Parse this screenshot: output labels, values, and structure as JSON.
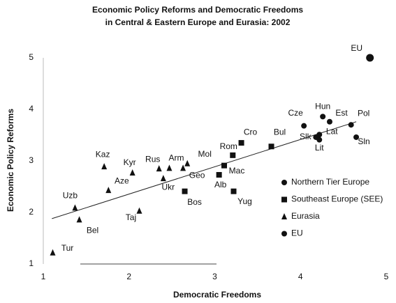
{
  "chart_data": {
    "type": "scatter",
    "title": "Economic Policy Reforms and Democratic Freedoms",
    "subtitle": "in Central & Eastern Europe and Eurasia: 2002",
    "xlabel": "Democratic Freedoms",
    "ylabel": "Economic Policy Reforms",
    "xlim": [
      1,
      5
    ],
    "ylim": [
      1,
      5
    ],
    "xticks": [
      1,
      2,
      3,
      4,
      5
    ],
    "yticks": [
      1,
      2,
      3,
      4,
      5
    ],
    "series": [
      {
        "name": "Northern Tier Europe",
        "color": "#111111",
        "marker": "circle",
        "labels": [
          "Cze",
          "Hun",
          "Est",
          "Pol",
          "Lat",
          "Slk",
          "Lit",
          "Sln"
        ],
        "x": [
          4.04,
          4.26,
          4.34,
          4.59,
          4.22,
          4.18,
          4.22,
          4.65
        ],
        "y": [
          3.68,
          3.86,
          3.76,
          3.7,
          3.51,
          3.46,
          3.41,
          3.46
        ]
      },
      {
        "name": "Southeast Europe (SEE)",
        "color": "#111111",
        "marker": "square",
        "labels": [
          "Cro",
          "Bul",
          "Rom",
          "Mac",
          "Alb",
          "Yug",
          "Bos"
        ],
        "x": [
          3.31,
          3.66,
          3.21,
          3.11,
          3.05,
          3.22,
          2.65
        ],
        "y": [
          3.35,
          3.28,
          3.11,
          2.91,
          2.73,
          2.41,
          2.41
        ]
      },
      {
        "name": "Eurasia",
        "color": "#111111",
        "marker": "triangle",
        "labels": [
          "Kaz",
          "Kyr",
          "Rus",
          "Arm",
          "Geo",
          "Mol",
          "Aze",
          "Ukr",
          "Uzb",
          "Bel",
          "Taj",
          "Tur"
        ],
        "x": [
          1.71,
          2.04,
          2.35,
          2.47,
          2.63,
          2.68,
          1.76,
          2.4,
          1.37,
          1.42,
          2.12,
          1.11
        ],
        "y": [
          2.89,
          2.77,
          2.85,
          2.86,
          2.86,
          2.95,
          2.43,
          2.66,
          2.09,
          1.86,
          2.03,
          1.22
        ]
      },
      {
        "name": "EU",
        "color": "#111111",
        "marker": "circle",
        "labels": [
          "EU"
        ],
        "x": [
          4.81
        ],
        "y": [
          5.0
        ]
      }
    ],
    "trendline": {
      "x": [
        1.1,
        4.65
      ],
      "y": [
        1.88,
        3.76
      ]
    }
  }
}
